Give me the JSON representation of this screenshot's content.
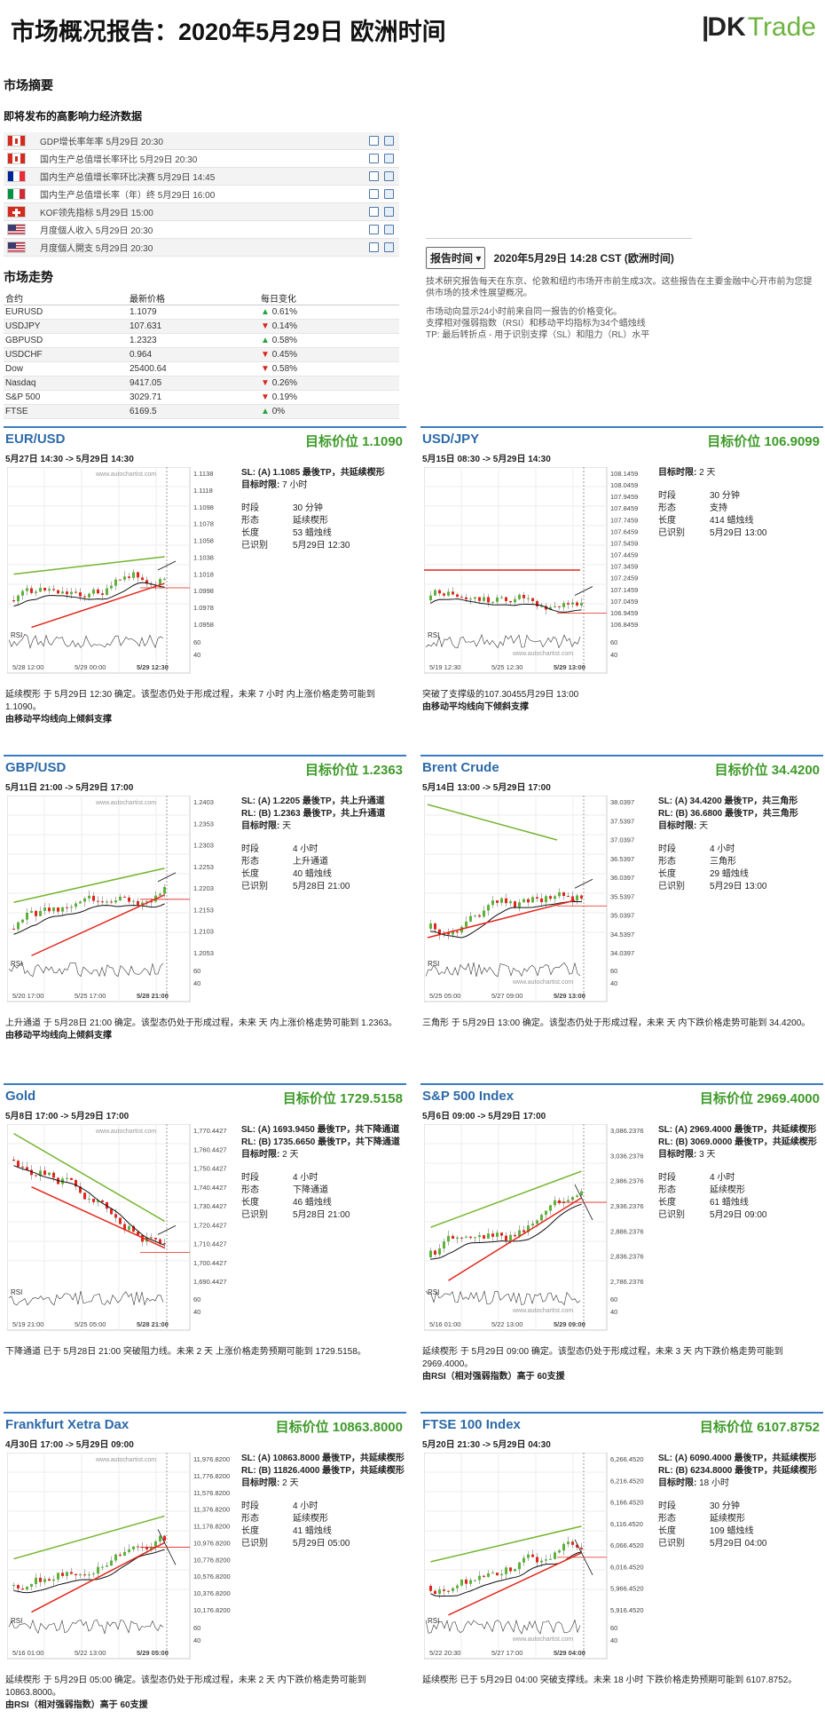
{
  "header": {
    "title": "市场概况报告：2020年5月29日 欧洲时间",
    "logo_dk": "DK",
    "logo_trade": "Trade"
  },
  "summary": {
    "title": "市场摘要",
    "events_title": "即将发布的高影响力经济数据",
    "events": [
      {
        "flag": "ca",
        "text": "GDP增长率年率 5月29日 20:30"
      },
      {
        "flag": "ca",
        "text": "国内生产总值增长率环比 5月29日 20:30"
      },
      {
        "flag": "fr",
        "text": "国内生产总值增长率环比决赛 5月29日 14:45"
      },
      {
        "flag": "it",
        "text": "国内生产总值增长率（年）终 5月29日 16:00"
      },
      {
        "flag": "ch",
        "text": "KOF领先指标 5月29日 15:00"
      },
      {
        "flag": "us",
        "text": "月度個人收入 5月29日 20:30"
      },
      {
        "flag": "us",
        "text": "月度個人開支 5月29日 20:30"
      }
    ]
  },
  "market": {
    "title": "市场走势",
    "headers": [
      "合约",
      "最新价格",
      "每日变化"
    ],
    "rows": [
      {
        "name": "EURUSD",
        "price": "1.1079",
        "change": "0.61%",
        "dir": "up"
      },
      {
        "name": "USDJPY",
        "price": "107.631",
        "change": "0.14%",
        "dir": "dn"
      },
      {
        "name": "GBPUSD",
        "price": "1.2323",
        "change": "0.58%",
        "dir": "up"
      },
      {
        "name": "USDCHF",
        "price": "0.964",
        "change": "0.45%",
        "dir": "dn"
      },
      {
        "name": "Dow",
        "price": "25400.64",
        "change": "0.58%",
        "dir": "dn"
      },
      {
        "name": "Nasdaq",
        "price": "9417.05",
        "change": "0.26%",
        "dir": "dn"
      },
      {
        "name": "S&P 500",
        "price": "3029.71",
        "change": "0.19%",
        "dir": "dn"
      },
      {
        "name": "FTSE",
        "price": "6169.5",
        "change": "0%",
        "dir": "up"
      }
    ]
  },
  "timezone": {
    "button": "报告时间",
    "time": "2020年5月29日 14:28 CST (欧洲时间)",
    "desc": "技术研究报告每天在东京、伦敦和纽约市场开市前生成3次。这些报告在主要金融中心开市前为您提供市场的技术性展望概况。",
    "legend1": "市场动向显示24小时前来自同一报告的价格变化。",
    "legend2": "支撑相对强弱指数（RSI）和移动平均指标为34个蜡烛线",
    "legend3": "TP: 最后转折点 - 用于识别支撑（SL）和阻力（RL）水平"
  },
  "labels": {
    "interval": "时段",
    "pattern": "形态",
    "length": "长度",
    "identified": "已识别",
    "period": "目标时限:",
    "rsi": "RSI",
    "watermark": "www.autochartist.com"
  },
  "colors": {
    "green": "#74b52e",
    "red": "#e3261c",
    "blue": "#2d6aa8"
  },
  "cards": [
    {
      "name": "EUR/USD",
      "target": "目标价位 1.1090",
      "dates": "5月27日 14:30 -> 5月29日 14:30",
      "sl": "SL: (A) 1.1085 最後TP，共延续楔形",
      "rl": "",
      "period": "7 小时",
      "interval": "30 分钟",
      "pattern": "延续楔形",
      "length": "53 蜡烛线",
      "identified": "5月29日 12:30",
      "foot": "延续楔形 于 5月29日 12:30 确定。该型态仍处于形成过程，未来 7 小时 内上涨价格走势可能到 1.1090。",
      "foot2": "由移动平均线向上倾斜支撑",
      "ticks": [
        "1.1138",
        "1.1118",
        "1.1098",
        "1.1078",
        "1.1058",
        "1.1038",
        "1.1018",
        "1.0998",
        "1.0978",
        "1.0958"
      ],
      "xt": [
        "5/28 12:00",
        "5/29 00:00",
        "5/29 12:30"
      ],
      "trend": "up",
      "rsi_t": [
        "60",
        "40"
      ]
    },
    {
      "name": "USD/JPY",
      "target": "目标价位 106.9099",
      "dates": "5月15日 08:30 -> 5月29日 14:30",
      "sl": "",
      "rl": "",
      "period": "2 天",
      "interval": "30 分钟",
      "pattern": "支持",
      "length": "414 蜡烛线",
      "identified": "5月29日 13:00",
      "foot": "突破了支撑级的107.30455月29日 13:00",
      "foot2": "由移动平均线向下倾斜支撑",
      "ticks": [
        "108.1459",
        "108.0459",
        "107.9459",
        "107.8459",
        "107.7459",
        "107.6459",
        "107.5459",
        "107.4459",
        "107.3459",
        "107.2459",
        "107.1459",
        "107.0459",
        "106.9459",
        "106.8459"
      ],
      "xt": [
        "5/19 12:30",
        "5/25 12:30",
        "5/29 13:00"
      ],
      "trend": "flat",
      "rsi_t": [
        "60",
        "40"
      ]
    },
    {
      "name": "GBP/USD",
      "target": "目标价位 1.2363",
      "dates": "5月11日 21:00 -> 5月29日 17:00",
      "sl": "SL: (A) 1.2205 最後TP，共上升通道",
      "rl": "RL: (B) 1.2363 最後TP，共上升通道",
      "period": "天",
      "interval": "4 小时",
      "pattern": "上升通道",
      "length": "40 蜡烛线",
      "identified": "5月28日 21:00",
      "foot": "上升通道 于 5月28日 21:00 确定。该型态仍处于形成过程，未来 天 内上涨价格走势可能到 1.2363。",
      "foot2": "由移动平均线向上倾斜支撑",
      "ticks": [
        "1.2403",
        "1.2353",
        "1.2303",
        "1.2253",
        "1.2203",
        "1.2153",
        "1.2103",
        "1.2053"
      ],
      "xt": [
        "5/20 17:00",
        "5/25 17:00",
        "5/28 21:00"
      ],
      "trend": "up",
      "rsi_t": [
        "60",
        "40"
      ]
    },
    {
      "name": "Brent Crude",
      "target": "目标价位 34.4200",
      "dates": "5月14日 13:00 -> 5月29日 17:00",
      "sl": "SL: (A) 34.4200 最後TP，共三角形",
      "rl": "RL: (B) 36.6800 最後TP，共三角形",
      "period": "天",
      "interval": "4 小时",
      "pattern": "三角形",
      "length": "29 蜡烛线",
      "identified": "5月29日 13:00",
      "foot": "三角形 于 5月29日 13:00 确定。该型态仍处于形成过程，未来 天 内下跌价格走势可能到 34.4200。",
      "foot2": "",
      "ticks": [
        "38.0397",
        "37.5397",
        "37.0397",
        "36.5397",
        "36.0397",
        "35.5397",
        "35.0397",
        "34.5397",
        "34.0397"
      ],
      "xt": [
        "5/25 05:00",
        "5/27 09:00",
        "5/29 13:00"
      ],
      "trend": "tri",
      "rsi_t": [
        "60",
        "40"
      ]
    },
    {
      "name": "Gold",
      "target": "目标价位 1729.5158",
      "dates": "5月8日 17:00 -> 5月29日 17:00",
      "sl": "SL: (A) 1693.9450 最後TP，共下降通道",
      "rl": "RL: (B) 1735.6650 最後TP，共下降通道",
      "period": "2 天",
      "interval": "4 小时",
      "pattern": "下降通道",
      "length": "46 蜡烛线",
      "identified": "5月28日 21:00",
      "foot": "下降通道 已于 5月28日 21:00 突破阻力线。未来 2 天 上涨价格走势预期可能到 1729.5158。",
      "foot2": "",
      "ticks": [
        "1,770.4427",
        "1,760.4427",
        "1,750.4427",
        "1,740.4427",
        "1,730.4427",
        "1,720.4427",
        "1,710.4427",
        "1,700.4427",
        "1,690.4427"
      ],
      "xt": [
        "5/19 21:00",
        "5/25 05:00",
        "5/28 21:00"
      ],
      "trend": "down",
      "rsi_t": [
        "60",
        "40"
      ]
    },
    {
      "name": "S&P 500 Index",
      "target": "目标价位 2969.4000",
      "dates": "5月6日 09:00 -> 5月29日 17:00",
      "sl": "SL: (A) 2969.4000 最後TP，共延续楔形",
      "rl": "RL: (B) 3069.0000 最後TP，共延续楔形",
      "period": "3 天",
      "interval": "4 小时",
      "pattern": "延续楔形",
      "length": "61 蜡烛线",
      "identified": "5月29日 09:00",
      "foot": "延续楔形 于 5月29日 09:00 确定。该型态仍处于形成过程，未来 3 天 内下跌价格走势可能到 2969.4000。",
      "foot2": "由RSI（相对强弱指数）高于 60支援",
      "ticks": [
        "3,086.2376",
        "3,036.2376",
        "2,986.2376",
        "2,936.2376",
        "2,886.2376",
        "2,836.2376",
        "2,786.2376"
      ],
      "xt": [
        "5/16 01:00",
        "5/22 13:00",
        "5/29 09:00"
      ],
      "trend": "up",
      "rsi_t": [
        "60",
        "40"
      ]
    },
    {
      "name": "Frankfurt Xetra Dax",
      "target": "目标价位 10863.8000",
      "dates": "4月30日 17:00 -> 5月29日 09:00",
      "sl": "SL: (A) 10863.8000 最後TP，共延续楔形",
      "rl": "RL: (B) 11826.4000 最後TP，共延续楔形",
      "period": "2 天",
      "interval": "4 小时",
      "pattern": "延续楔形",
      "length": "41 蜡烛线",
      "identified": "5月29日 05:00",
      "foot": "延续楔形 于 5月29日 05:00 确定。该型态仍处于形成过程，未来 2 天 内下跌价格走势可能到 10863.8000。",
      "foot2": "由RSI（相对强弱指数）高于 60支援",
      "ticks": [
        "11,976.8200",
        "11,776.8200",
        "11,576.8200",
        "11,376.8200",
        "11,176.8200",
        "10,976.8200",
        "10,776.8200",
        "10,576.8200",
        "10,376.8200",
        "10,176.8200"
      ],
      "xt": [
        "5/16 01:00",
        "5/22 13:00",
        "5/29 05:00"
      ],
      "trend": "up",
      "rsi_t": [
        "60",
        "40"
      ]
    },
    {
      "name": "FTSE 100 Index",
      "target": "目标价位 6107.8752",
      "dates": "5月20日 21:30 -> 5月29日 04:30",
      "sl": "SL: (A) 6090.4000 最後TP，共延续楔形",
      "rl": "RL: (B) 6234.8000 最後TP，共延续楔形",
      "period": "18 小时",
      "interval": "30 分钟",
      "pattern": "延续楔形",
      "length": "109 蜡烛线",
      "identified": "5月29日 04:00",
      "foot": "延续楔形 已于 5月29日 04:00 突破支撑线。未来 18 小时 下跌价格走势预期可能到 6107.8752。",
      "foot2": "",
      "ticks": [
        "6,266.4520",
        "6,216.4520",
        "6,166.4520",
        "6,116.4520",
        "6,066.4520",
        "6,016.4520",
        "5,966.4520",
        "5,916.4520"
      ],
      "xt": [
        "5/22 20:30",
        "5/27 17:00",
        "5/29 04:00"
      ],
      "trend": "up",
      "rsi_t": [
        "60",
        "40"
      ]
    }
  ]
}
